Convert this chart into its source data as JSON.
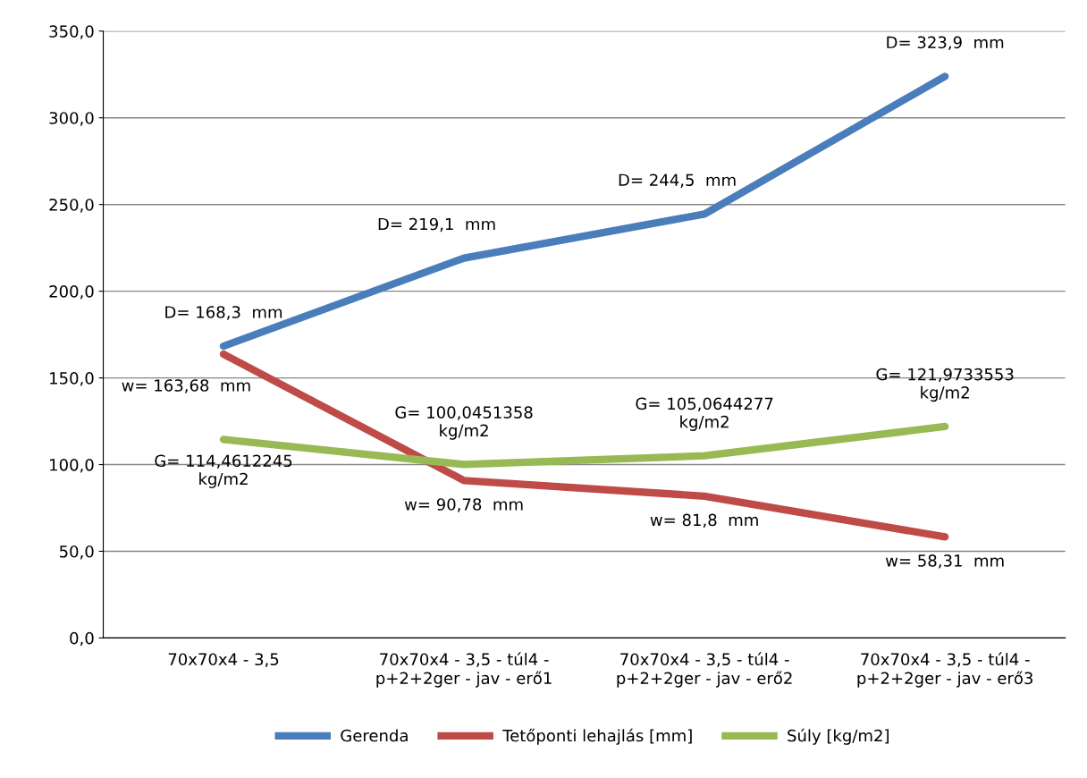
{
  "chart_data": {
    "type": "line",
    "categories": [
      "70x70x4 - 3,5",
      "70x70x4 - 3,5 - túl4 -\np+2+2ger - jav - erő1",
      "70x70x4 - 3,5 - túl4 -\np+2+2ger - jav - erő2",
      "70x70x4 - 3,5 - túl4 -\np+2+2ger - jav - erő3"
    ],
    "series": [
      {
        "name": "Gerenda",
        "color": "#4a7ebb",
        "values": [
          168.3,
          219.1,
          244.5,
          323.9
        ],
        "value_labels": [
          "D= 168,3  mm",
          "D= 219,1  mm",
          "D= 244,5  mm",
          "D= 323,9  mm"
        ]
      },
      {
        "name": "Tetőponti lehajlás [mm]",
        "color": "#be4b48",
        "values": [
          163.68,
          90.78,
          81.8,
          58.31
        ],
        "value_labels": [
          "w= 163,68  mm",
          "w= 90,78  mm",
          "w= 81,8  mm",
          "w= 58,31  mm"
        ]
      },
      {
        "name": "Súly [kg/m2]",
        "color": "#98b954",
        "values": [
          114.4612245,
          100.0451358,
          105.0644277,
          121.9733553
        ],
        "value_labels": [
          "G= 114,4612245\nkg/m2",
          "G= 100,0451358\nkg/m2",
          "G= 105,0644277\nkg/m2",
          "G= 121,9733553\nkg/m2"
        ]
      }
    ],
    "ylim": [
      0,
      350
    ],
    "yticks": [
      {
        "value": 0,
        "label": "0,0"
      },
      {
        "value": 50,
        "label": "50,0"
      },
      {
        "value": 100,
        "label": "100,0"
      },
      {
        "value": 150,
        "label": "150,0"
      },
      {
        "value": 200,
        "label": "200,0"
      },
      {
        "value": 250,
        "label": "250,0"
      },
      {
        "value": 300,
        "label": "300,0"
      },
      {
        "value": 350,
        "label": "350,0"
      }
    ],
    "grid": "y",
    "legend": "bottom",
    "marker": "none",
    "line_style": "solid"
  }
}
